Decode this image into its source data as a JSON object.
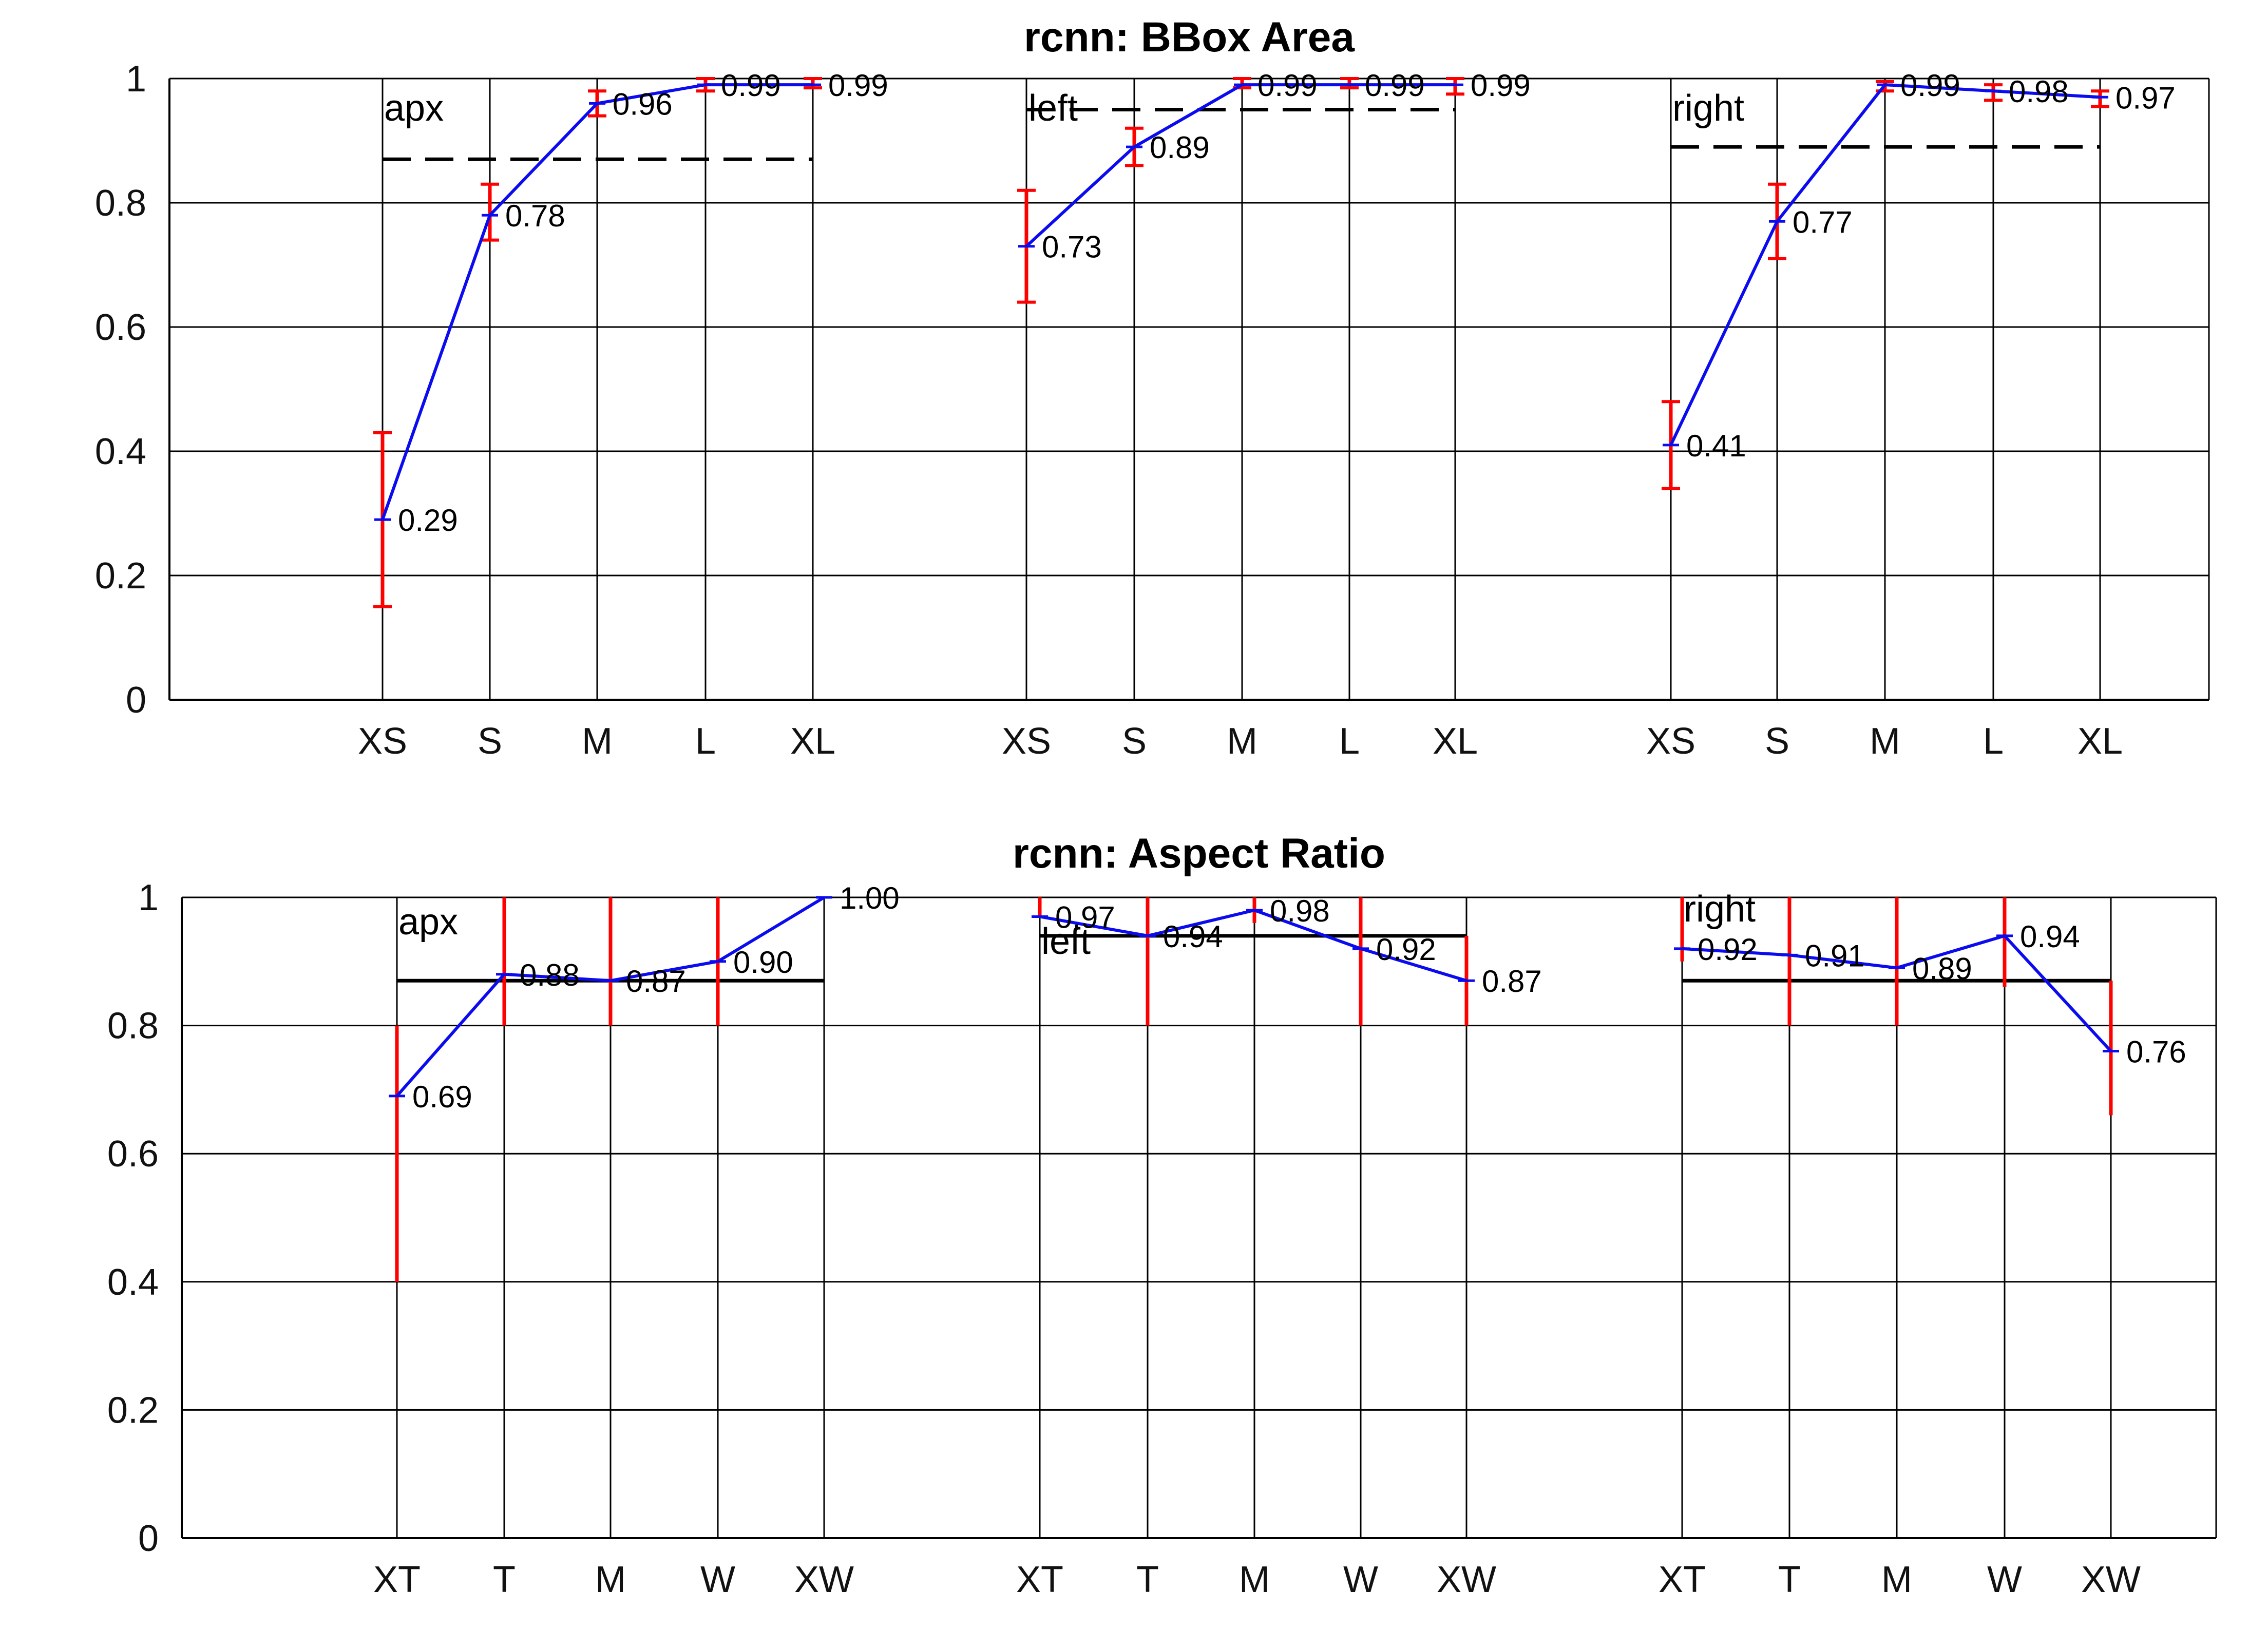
{
  "colors": {
    "series_line": "#0b0bf0",
    "error_bar": "#ff0000",
    "reference_line": "#000000",
    "grid": "#000000",
    "background": "#ffffff"
  },
  "chart_data": [
    {
      "type": "line",
      "title": "rcnn: BBox Area",
      "xlabel": "",
      "ylabel": "",
      "ylim": [
        0,
        1
      ],
      "yticks": [
        "0",
        "0.2",
        "0.4",
        "0.6",
        "0.8",
        "1"
      ],
      "grid": true,
      "reference_style": "dashed",
      "categories": [
        "XS",
        "S",
        "M",
        "L",
        "XL"
      ],
      "groups": [
        {
          "name": "apx",
          "values": [
            0.29,
            0.78,
            0.96,
            0.99,
            0.99
          ],
          "labels": [
            "0.29",
            "0.78",
            "0.96",
            "0.99",
            "0.99"
          ],
          "error_low": [
            0.15,
            0.74,
            0.94,
            0.98,
            0.985
          ],
          "error_high": [
            0.43,
            0.83,
            0.98,
            1.0,
            1.0
          ],
          "reference": 0.87
        },
        {
          "name": "left",
          "values": [
            0.73,
            0.89,
            0.99,
            0.99,
            0.99
          ],
          "labels": [
            "0.73",
            "0.89",
            "0.99",
            "0.99",
            "0.99"
          ],
          "error_low": [
            0.64,
            0.86,
            0.985,
            0.985,
            0.975
          ],
          "error_high": [
            0.82,
            0.92,
            1.0,
            1.0,
            1.0
          ],
          "reference": 0.95
        },
        {
          "name": "right",
          "values": [
            0.41,
            0.77,
            0.99,
            0.98,
            0.97
          ],
          "labels": [
            "0.41",
            "0.77",
            "0.99",
            "0.98",
            "0.97"
          ],
          "error_low": [
            0.34,
            0.71,
            0.98,
            0.965,
            0.955
          ],
          "error_high": [
            0.48,
            0.83,
            0.995,
            0.99,
            0.98
          ],
          "reference": 0.89
        }
      ]
    },
    {
      "type": "line",
      "title": "rcnn: Aspect Ratio",
      "xlabel": "",
      "ylabel": "",
      "ylim": [
        0,
        1
      ],
      "yticks": [
        "0",
        "0.2",
        "0.4",
        "0.6",
        "0.8",
        "1"
      ],
      "grid": true,
      "reference_style": "solid",
      "categories": [
        "XT",
        "T",
        "M",
        "W",
        "XW"
      ],
      "groups": [
        {
          "name": "apx",
          "values": [
            0.69,
            0.88,
            0.87,
            0.9,
            1.0
          ],
          "labels": [
            "0.69",
            "0.88",
            "0.87",
            "0.90",
            "1.00"
          ],
          "error_low": [
            0.4,
            0.8,
            0.8,
            0.8,
            1.0
          ],
          "error_high": [
            0.8,
            1.0,
            1.0,
            1.0,
            1.0
          ],
          "reference": 0.87
        },
        {
          "name": "left",
          "values": [
            0.97,
            0.94,
            0.98,
            0.92,
            0.87
          ],
          "labels": [
            "0.97",
            "0.94",
            "0.98",
            "0.92",
            "0.87"
          ],
          "error_low": [
            0.97,
            0.8,
            0.96,
            0.8,
            0.8
          ],
          "error_high": [
            1.0,
            1.0,
            1.0,
            1.0,
            0.94
          ],
          "reference": 0.94
        },
        {
          "name": "right",
          "values": [
            0.92,
            0.91,
            0.89,
            0.94,
            0.76
          ],
          "labels": [
            "0.92",
            "0.91",
            "0.89",
            "0.94",
            "0.76"
          ],
          "error_low": [
            0.9,
            0.8,
            0.8,
            0.86,
            0.66
          ],
          "error_high": [
            1.0,
            1.0,
            1.0,
            1.0,
            0.87
          ],
          "reference": 0.87
        }
      ]
    }
  ]
}
